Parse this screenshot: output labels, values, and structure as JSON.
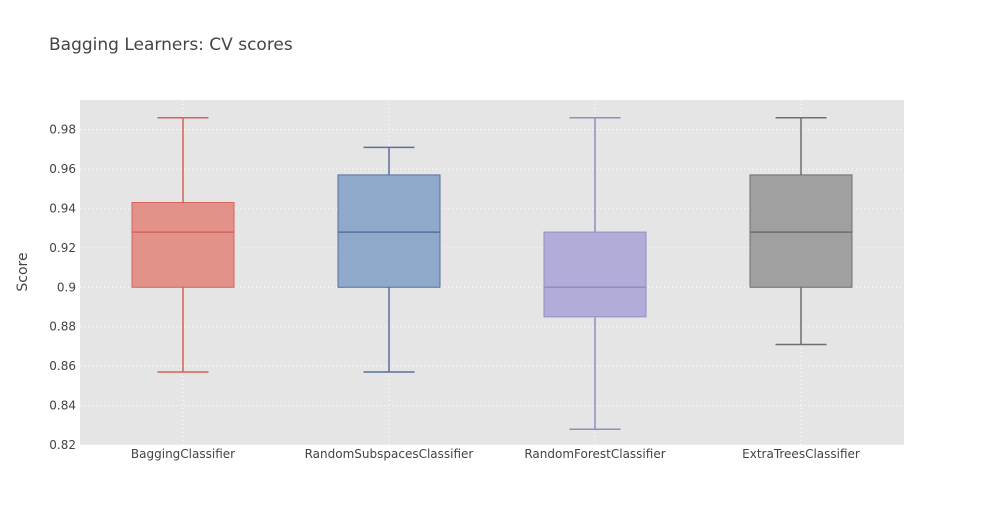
{
  "chart_data": {
    "type": "box",
    "title": "Bagging Learners: CV scores",
    "xlabel": "",
    "ylabel": "Score",
    "ylim": [
      0.82,
      0.995
    ],
    "yticks": [
      "0.82",
      "0.84",
      "0.86",
      "0.88",
      "0.9",
      "0.92",
      "0.94",
      "0.96",
      "0.98"
    ],
    "categories": [
      "BaggingClassifier",
      "RandomSubspacesClassifier",
      "RandomForestClassifier",
      "ExtraTreesClassifier"
    ],
    "boxes": [
      {
        "category": "BaggingClassifier",
        "min": 0.857,
        "q1": 0.9,
        "median": 0.928,
        "q3": 0.943,
        "max": 0.986,
        "fill": "#e3928a",
        "line": "#d4645a"
      },
      {
        "category": "RandomSubspacesClassifier",
        "min": 0.857,
        "q1": 0.9,
        "median": 0.928,
        "q3": 0.957,
        "max": 0.971,
        "fill": "#8fa9cb",
        "line": "#5a6f9e"
      },
      {
        "category": "RandomForestClassifier",
        "min": 0.828,
        "q1": 0.885,
        "median": 0.9,
        "q3": 0.928,
        "max": 0.986,
        "fill": "#b1acd8",
        "line": "#8d8fc4"
      },
      {
        "category": "ExtraTreesClassifier",
        "min": 0.871,
        "q1": 0.9,
        "median": 0.928,
        "q3": 0.957,
        "max": 0.986,
        "fill": "#a0a0a0",
        "line": "#6e6e6e"
      }
    ],
    "grid": true,
    "legend": "none",
    "colors": {
      "plot_background": "#e5e5e5",
      "grid": "#ffffff",
      "text": "#444444"
    }
  }
}
